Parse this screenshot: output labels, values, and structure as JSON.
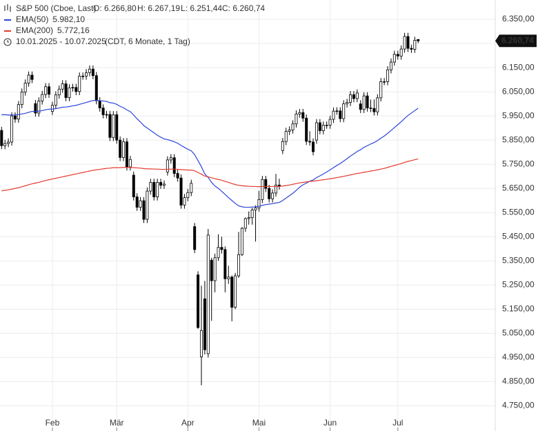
{
  "chart_data": {
    "type": "candlestick",
    "title": "S&P 500 (Cboe, Last)",
    "ohlc_labels": [
      "O: 6.266,80",
      "H: 6.267,19",
      "L: 6.251,44",
      "C: 6.260,74"
    ],
    "range": "10.01.2025 - 10.07.2025",
    "subtitle": "(CDT, 6 Monate, 1 Tag)",
    "last_label": "6.260,74",
    "categories": [
      null,
      null,
      null,
      null,
      null,
      null,
      null,
      null,
      null,
      null,
      null,
      null,
      null,
      null,
      null,
      "Feb",
      null,
      null,
      null,
      null,
      null,
      null,
      null,
      null,
      null,
      null,
      null,
      null,
      null,
      null,
      null,
      null,
      null,
      null,
      "Mär",
      null,
      null,
      null,
      null,
      null,
      null,
      null,
      null,
      null,
      null,
      null,
      null,
      null,
      null,
      null,
      null,
      null,
      null,
      null,
      null,
      "Apr",
      null,
      null,
      null,
      null,
      null,
      null,
      null,
      null,
      null,
      null,
      null,
      null,
      null,
      null,
      null,
      null,
      null,
      null,
      null,
      null,
      "Mai",
      null,
      null,
      null,
      null,
      null,
      null,
      null,
      null,
      null,
      null,
      null,
      null,
      null,
      null,
      null,
      null,
      null,
      null,
      null,
      null,
      "Jun",
      null,
      null,
      null,
      null,
      null,
      null,
      null,
      null,
      null,
      null,
      null,
      null,
      null,
      null,
      null,
      null,
      null,
      null,
      null,
      "Jul",
      null,
      null,
      null,
      null,
      null,
      null
    ],
    "series": [
      {
        "name": "S&P 500 (Cboe, Last)",
        "color": "#000000",
        "open": [
          5890,
          5827,
          5836,
          5842,
          5950,
          5937,
          5997,
          6049,
          6086,
          6119,
          6001,
          5962,
          6012,
          6039,
          6071,
          5969,
          5994,
          6037,
          6061,
          6083,
          6026,
          6066,
          6068,
          6051,
          6115,
          6115,
          6129,
          6144,
          6117,
          6013,
          5983,
          5955,
          5956,
          5861,
          5955,
          5850,
          5778,
          5843,
          5739,
          5705,
          5615,
          5572,
          5599,
          5522,
          5639,
          5675,
          5615,
          5675,
          5663,
          5718,
          5768,
          5777,
          5712,
          5693,
          5581,
          5612,
          5633,
          5492,
          5292,
          4953,
          5193,
          4966,
          5353,
          5268,
          5363,
          5406,
          5397,
          5276,
          5283,
          5158,
          5288,
          5376,
          5485,
          5525,
          5529,
          5561,
          5569,
          5604,
          5687,
          5650,
          5607,
          5631,
          5664,
          5807,
          5844,
          5886,
          5892,
          5917,
          5958,
          5964,
          5941,
          5845,
          5842,
          5850,
          5922,
          5889,
          5912,
          5912,
          5936,
          5970,
          5971,
          5939,
          6000,
          6006,
          6038,
          6022,
          6000,
          5977,
          6033,
          5983,
          5981,
          5967,
          6025,
          6092,
          6092,
          6141,
          6173,
          6205,
          6198,
          6227,
          6279,
          6230,
          6226,
          6266.8
        ],
        "high": [
          5905,
          5851,
          5857,
          5965,
          5965,
          6012,
          6064,
          6101,
          6134,
          6134,
          6016,
          6027,
          6054,
          6086,
          6086,
          6009,
          6052,
          6076,
          6098,
          6098,
          6081,
          6083,
          6083,
          6130,
          6130,
          6144,
          6159,
          6159,
          6132,
          6028,
          5998,
          5971,
          5971,
          5970,
          5970,
          5865,
          5858,
          5858,
          5785,
          5720,
          5630,
          5614,
          5614,
          5654,
          5690,
          5690,
          5690,
          5690,
          5683,
          5783,
          5792,
          5792,
          5727,
          5708,
          5627,
          5648,
          5686,
          5507,
          5307,
          5247,
          5267,
          5482,
          5363,
          5380,
          5460,
          5450,
          5410,
          5330,
          5290,
          5300,
          5470,
          5490,
          5530,
          5555,
          5570,
          5580,
          5640,
          5702,
          5702,
          5665,
          5646,
          5710,
          5690,
          5859,
          5901,
          5907,
          5932,
          5973,
          5979,
          5979,
          5956,
          5887,
          5857,
          5937,
          5937,
          5927,
          5927,
          5951,
          5985,
          5986,
          5986,
          6015,
          6021,
          6053,
          6053,
          6060,
          6015,
          6048,
          6048,
          6018,
          6018,
          6040,
          6107,
          6107,
          6156,
          6188,
          6220,
          6220,
          6242,
          6294,
          6294,
          6245,
          6278,
          6267.19
        ],
        "low": [
          5812,
          5812,
          5821,
          5827,
          5922,
          5922,
          5982,
          6034,
          6071,
          6086,
          5947,
          5947,
          5997,
          6024,
          6025,
          5954,
          5979,
          6022,
          6046,
          6011,
          6011,
          6051,
          6036,
          6036,
          6100,
          6100,
          6114,
          6102,
          5998,
          5968,
          5940,
          5940,
          5846,
          5846,
          5835,
          5763,
          5763,
          5724,
          5724,
          5600,
          5557,
          5557,
          5507,
          5507,
          5624,
          5600,
          5600,
          5648,
          5648,
          5703,
          5753,
          5697,
          5678,
          5566,
          5566,
          5597,
          5618,
          5382,
          5069,
          4835,
          4962,
          4950,
          5102,
          5220,
          5350,
          5380,
          5220,
          5255,
          5100,
          5150,
          5280,
          5370,
          5470,
          5500,
          5500,
          5430,
          5554,
          5589,
          5635,
          5592,
          5592,
          5616,
          5645,
          5792,
          5829,
          5871,
          5877,
          5902,
          5943,
          5926,
          5830,
          5827,
          5787,
          5835,
          5874,
          5874,
          5897,
          5897,
          5921,
          5955,
          5924,
          5924,
          5985,
          5991,
          6007,
          6007,
          5962,
          5962,
          5968,
          5966,
          5952,
          5952,
          6010,
          6077,
          6077,
          6126,
          6158,
          6183,
          6183,
          6212,
          6215,
          6211,
          6211,
          6251.44
        ],
        "close": [
          5827,
          5836,
          5842,
          5950,
          5937,
          5997,
          6049,
          6086,
          6119,
          6101,
          5962,
          6012,
          6039,
          6071,
          6040,
          5994,
          6037,
          6061,
          6083,
          6026,
          6066,
          6068,
          6051,
          6115,
          6115,
          6129,
          6144,
          6117,
          6013,
          5983,
          5955,
          5956,
          5861,
          5955,
          5850,
          5778,
          5843,
          5739,
          5770,
          5615,
          5572,
          5599,
          5522,
          5639,
          5675,
          5615,
          5675,
          5663,
          5668,
          5768,
          5777,
          5712,
          5693,
          5581,
          5612,
          5633,
          5671,
          5397,
          5074,
          5062,
          4982,
          5457,
          5268,
          5363,
          5406,
          5397,
          5276,
          5283,
          5158,
          5288,
          5376,
          5485,
          5525,
          5529,
          5561,
          5569,
          5604,
          5687,
          5650,
          5607,
          5631,
          5664,
          5660,
          5844,
          5886,
          5892,
          5917,
          5958,
          5964,
          5941,
          5845,
          5842,
          5802,
          5922,
          5889,
          5912,
          5912,
          5936,
          5970,
          5971,
          5939,
          6000,
          6006,
          6038,
          6022,
          6045,
          5977,
          6033,
          5983,
          5981,
          5967,
          6025,
          6092,
          6092,
          6141,
          6173,
          6205,
          6198,
          6227,
          6279,
          6230,
          6226,
          6263,
          6260.74
        ]
      },
      {
        "name": "EMA(50)",
        "color": "#2b44d6",
        "value_label": "5.982,10",
        "values": [
          5955,
          5955,
          5954,
          5954,
          5954,
          5956,
          5958,
          5961,
          5965,
          5969,
          5968,
          5970,
          5972,
          5976,
          5978,
          5978,
          5980,
          5983,
          5986,
          5987,
          5989,
          5992,
          5994,
          5998,
          6002,
          6006,
          6010,
          6014,
          6014,
          6013,
          6012,
          6010,
          6005,
          6003,
          5998,
          5990,
          5984,
          5975,
          5968,
          5954,
          5938,
          5925,
          5910,
          5900,
          5890,
          5880,
          5870,
          5862,
          5855,
          5852,
          5848,
          5843,
          5837,
          5828,
          5820,
          5812,
          5806,
          5790,
          5765,
          5740,
          5710,
          5695,
          5675,
          5660,
          5650,
          5638,
          5625,
          5612,
          5600,
          5588,
          5578,
          5574,
          5572,
          5572,
          5573,
          5574,
          5576,
          5580,
          5583,
          5585,
          5587,
          5590,
          5592,
          5600,
          5610,
          5620,
          5630,
          5642,
          5655,
          5665,
          5672,
          5680,
          5685,
          5695,
          5702,
          5710,
          5718,
          5727,
          5736,
          5745,
          5753,
          5763,
          5773,
          5784,
          5793,
          5803,
          5810,
          5820,
          5827,
          5834,
          5840,
          5848,
          5858,
          5867,
          5878,
          5890,
          5902,
          5914,
          5926,
          5940,
          5952,
          5962,
          5972,
          5982.1
        ]
      },
      {
        "name": "EMA(200)",
        "color": "#e3392e",
        "value_label": "5.772,16",
        "values": [
          5640,
          5642,
          5644,
          5647,
          5650,
          5653,
          5657,
          5661,
          5665,
          5669,
          5672,
          5675,
          5679,
          5683,
          5686,
          5689,
          5692,
          5695,
          5698,
          5701,
          5704,
          5707,
          5710,
          5713,
          5716,
          5719,
          5722,
          5725,
          5727,
          5729,
          5731,
          5733,
          5734,
          5736,
          5736,
          5736,
          5737,
          5737,
          5737,
          5736,
          5735,
          5734,
          5732,
          5731,
          5731,
          5730,
          5730,
          5729,
          5729,
          5729,
          5730,
          5730,
          5729,
          5728,
          5727,
          5726,
          5726,
          5723,
          5716,
          5709,
          5701,
          5698,
          5694,
          5690,
          5687,
          5684,
          5679,
          5675,
          5670,
          5666,
          5663,
          5661,
          5660,
          5659,
          5658,
          5658,
          5657,
          5658,
          5658,
          5658,
          5658,
          5658,
          5658,
          5660,
          5662,
          5664,
          5667,
          5670,
          5673,
          5675,
          5677,
          5679,
          5680,
          5682,
          5684,
          5686,
          5688,
          5690,
          5692,
          5695,
          5697,
          5700,
          5703,
          5706,
          5709,
          5712,
          5714,
          5717,
          5719,
          5722,
          5724,
          5727,
          5730,
          5733,
          5737,
          5741,
          5745,
          5749,
          5753,
          5758,
          5762,
          5765,
          5769,
          5772.16
        ]
      }
    ],
    "ylim": [
      4720,
      6430
    ],
    "yticks": [
      {
        "value": 4750,
        "label": "4.750,00"
      },
      {
        "value": 4850,
        "label": "4.850,00"
      },
      {
        "value": 4950,
        "label": "4.950,00"
      },
      {
        "value": 5050,
        "label": "5.050,00"
      },
      {
        "value": 5150,
        "label": "5.150,00"
      },
      {
        "value": 5250,
        "label": "5.250,00"
      },
      {
        "value": 5350,
        "label": "5.350,00"
      },
      {
        "value": 5450,
        "label": "5.450,00"
      },
      {
        "value": 5550,
        "label": "5.550,00"
      },
      {
        "value": 5650,
        "label": "5.650,00"
      },
      {
        "value": 5750,
        "label": "5.750,00"
      },
      {
        "value": 5850,
        "label": "5.850,00"
      },
      {
        "value": 5950,
        "label": "5.950,00"
      },
      {
        "value": 6050,
        "label": "6.050,00"
      },
      {
        "value": 6150,
        "label": "6.150,00"
      },
      {
        "value": 6250,
        "label": "6.250,00"
      },
      {
        "value": 6350,
        "label": "6.350,00"
      }
    ],
    "grid": true
  }
}
